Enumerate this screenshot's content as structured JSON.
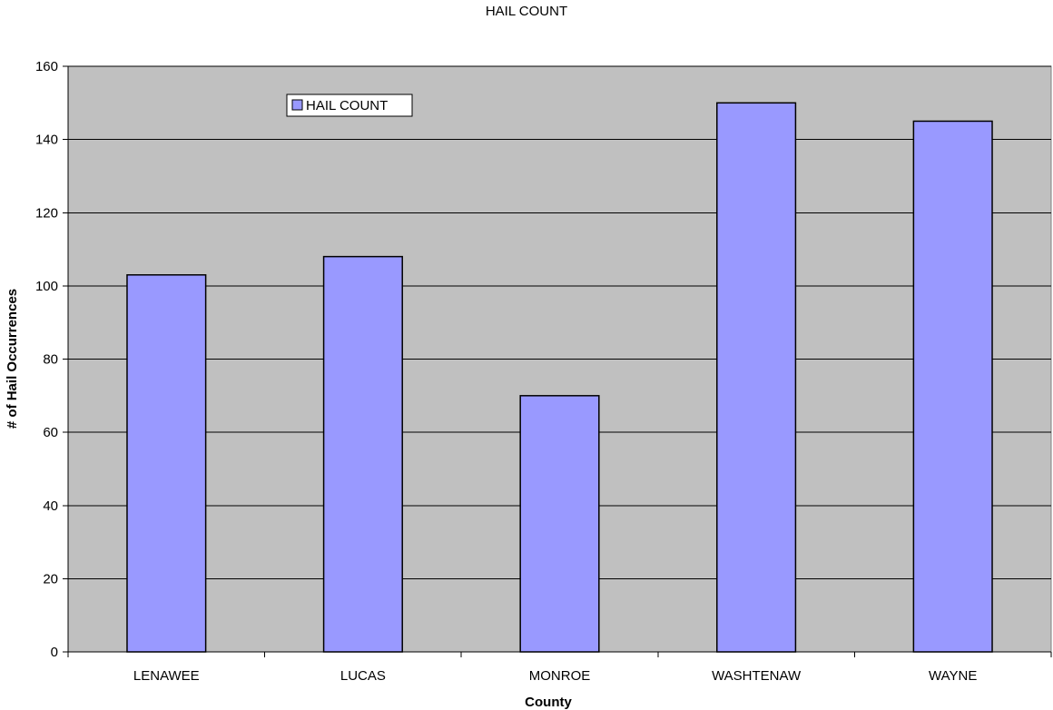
{
  "chart_data": {
    "type": "bar",
    "title": "HAIL COUNT",
    "xlabel": "County",
    "ylabel": "# of Hail Occurrences",
    "categories": [
      "LENAWEE",
      "LUCAS",
      "MONROE",
      "WASHTENAW",
      "WAYNE"
    ],
    "series": [
      {
        "name": "HAIL COUNT",
        "values": [
          103,
          108,
          70,
          150,
          145
        ]
      }
    ],
    "ylim": [
      0,
      160
    ],
    "yticks": [
      "0",
      "20",
      "40",
      "60",
      "80",
      "100",
      "120",
      "140",
      "160"
    ],
    "grid": true,
    "legend_position": "top-left",
    "colors": {
      "plot_background": "#c0c0c0",
      "bar_fill": "#9999ff",
      "bar_stroke": "#000000",
      "gridline": "#000000"
    }
  }
}
